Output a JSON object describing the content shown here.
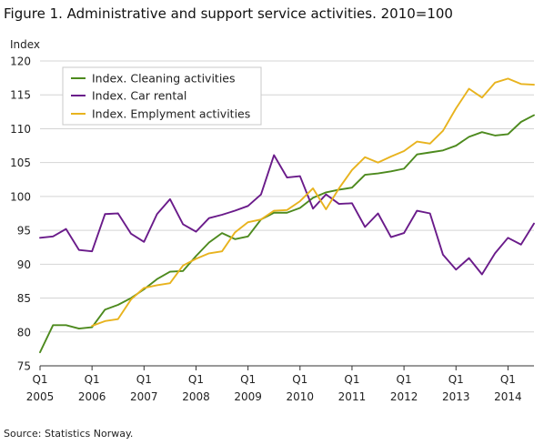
{
  "title": "Figure 1. Administrative and support service activities. 2010=100",
  "source": "Source: Statistics Norway.",
  "chart_data": {
    "type": "line",
    "title": "Figure 1. Administrative and support service activities. 2010=100",
    "ylabel": "Index",
    "xlabel": "",
    "ylim": [
      75,
      120
    ],
    "yticks": [
      75,
      80,
      85,
      90,
      95,
      100,
      105,
      110,
      115,
      120
    ],
    "grid": "horizontal",
    "legend_position": "top-left",
    "x": [
      "2005Q1",
      "2005Q2",
      "2005Q3",
      "2005Q4",
      "2006Q1",
      "2006Q2",
      "2006Q3",
      "2006Q4",
      "2007Q1",
      "2007Q2",
      "2007Q3",
      "2007Q4",
      "2008Q1",
      "2008Q2",
      "2008Q3",
      "2008Q4",
      "2009Q1",
      "2009Q2",
      "2009Q3",
      "2009Q4",
      "2010Q1",
      "2010Q2",
      "2010Q3",
      "2010Q4",
      "2011Q1",
      "2011Q2",
      "2011Q3",
      "2011Q4",
      "2012Q1",
      "2012Q2",
      "2012Q3",
      "2012Q4",
      "2013Q1",
      "2013Q2",
      "2013Q3",
      "2013Q4",
      "2014Q1",
      "2014Q2",
      "2014Q3"
    ],
    "x_tick_labels": [
      {
        "q": "Q1",
        "year": "2005",
        "index": 0
      },
      {
        "q": "Q1",
        "year": "2006",
        "index": 4
      },
      {
        "q": "Q1",
        "year": "2007",
        "index": 8
      },
      {
        "q": "Q1",
        "year": "2008",
        "index": 12
      },
      {
        "q": "Q1",
        "year": "2009",
        "index": 16
      },
      {
        "q": "Q1",
        "year": "2010",
        "index": 20
      },
      {
        "q": "Q1",
        "year": "2011",
        "index": 24
      },
      {
        "q": "Q1",
        "year": "2012",
        "index": 28
      },
      {
        "q": "Q1",
        "year": "2013",
        "index": 32
      },
      {
        "q": "Q1",
        "year": "2014",
        "index": 36
      }
    ],
    "series": [
      {
        "name": "Index. Cleaning activities",
        "color": "#4d8a1e",
        "values": [
          77.0,
          81.0,
          81.0,
          80.5,
          80.7,
          83.3,
          84.0,
          85.0,
          86.3,
          87.8,
          88.9,
          89.0,
          91.2,
          93.2,
          94.6,
          93.7,
          94.1,
          96.6,
          97.6,
          97.6,
          98.3,
          99.8,
          100.6,
          101.0,
          101.3,
          103.2,
          103.4,
          103.7,
          104.1,
          106.2,
          106.5,
          106.8,
          107.5,
          108.8,
          109.5,
          109.0,
          109.2,
          111.0,
          112.0
        ]
      },
      {
        "name": "Index. Car rental",
        "color": "#6a1b8a",
        "values": [
          93.9,
          94.1,
          95.2,
          92.1,
          91.9,
          97.4,
          97.5,
          94.5,
          93.3,
          97.4,
          99.6,
          95.9,
          94.8,
          96.8,
          97.3,
          97.9,
          98.6,
          100.3,
          106.1,
          102.8,
          103.0,
          98.2,
          100.3,
          98.9,
          99.0,
          95.5,
          97.5,
          94.0,
          94.6,
          97.9,
          97.5,
          91.4,
          89.2,
          90.9,
          88.5,
          91.6,
          93.9,
          92.9,
          96.0
        ]
      },
      {
        "name": "Index. Emplyment activities",
        "color": "#e8b31e",
        "values": [
          null,
          null,
          null,
          null,
          80.9,
          81.6,
          81.9,
          84.8,
          86.5,
          86.9,
          87.2,
          89.8,
          90.8,
          91.6,
          91.9,
          94.7,
          96.2,
          96.6,
          97.9,
          98.0,
          99.3,
          101.2,
          98.1,
          101.2,
          103.9,
          105.8,
          105.0,
          105.9,
          106.7,
          108.1,
          107.8,
          109.7,
          113.0,
          115.9,
          114.6,
          116.8,
          117.4,
          116.6,
          116.5
        ]
      }
    ]
  }
}
